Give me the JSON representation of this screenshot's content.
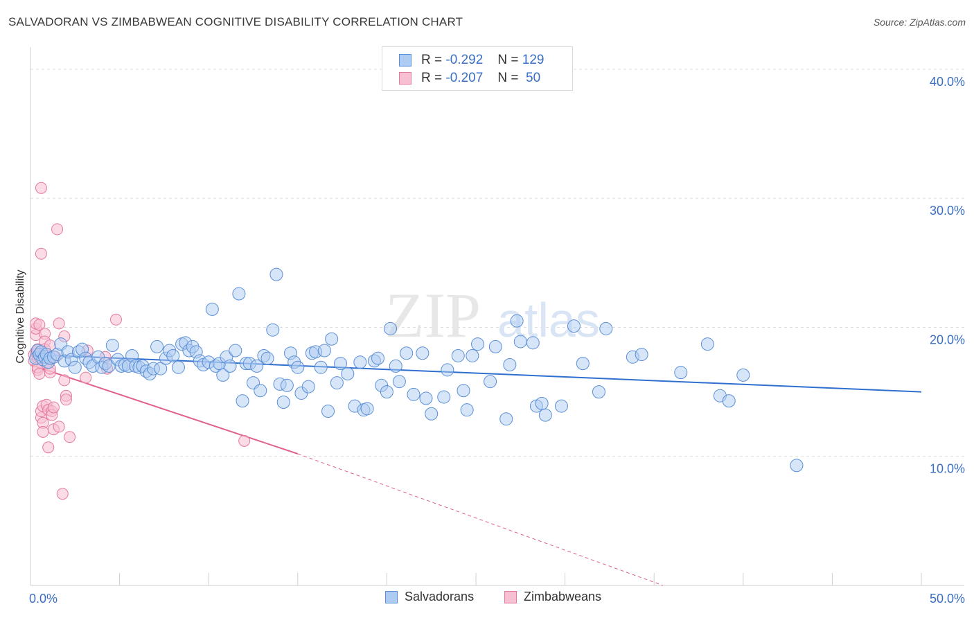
{
  "title": "SALVADORAN VS ZIMBABWEAN COGNITIVE DISABILITY CORRELATION CHART",
  "source": "Source: ZipAtlas.com",
  "watermark": {
    "zip": "ZIP",
    "atlas": "atlas"
  },
  "legend": {
    "series": [
      {
        "r_label": "R =",
        "r_value": "-0.292",
        "n_label": "N =",
        "n_value": "129"
      },
      {
        "r_label": "R =",
        "r_value": "-0.207",
        "n_label": "N =",
        "n_value": " 50"
      }
    ]
  },
  "colors": {
    "salvadoran_fill": "#aecbf1",
    "salvadoran_stroke": "#5a8fd6",
    "salvadoran_line": "#2f6fcf",
    "zimbabwean_fill": "#f7bfd2",
    "zimbabwean_stroke": "#e57aa0",
    "zimbabwean_line": "#e0608f",
    "axis_text": "#3a6fc4",
    "grid": "#dddddd"
  },
  "chart_data": {
    "type": "scatter",
    "title": "SALVADORAN VS ZIMBABWEAN COGNITIVE DISABILITY CORRELATION CHART",
    "xlabel": "",
    "ylabel": "Cognitive Disability",
    "xlim": [
      0,
      50
    ],
    "ylim": [
      0,
      41.5
    ],
    "x_tick_labels": [
      "0.0%",
      "50.0%"
    ],
    "y_ticks": [
      10,
      20,
      30,
      40
    ],
    "y_tick_labels": [
      "10.0%",
      "20.0%",
      "30.0%",
      "40.0%"
    ],
    "legend_position": "top-center",
    "series": [
      {
        "name": "Salvadorans",
        "points": [
          [
            0.3,
            17.6
          ],
          [
            0.4,
            18.2
          ],
          [
            0.5,
            17.9
          ],
          [
            0.6,
            18.1
          ],
          [
            0.7,
            17.5
          ],
          [
            0.8,
            17.7
          ],
          [
            0.9,
            17.9
          ],
          [
            1.0,
            17.3
          ],
          [
            1.1,
            17.6
          ],
          [
            1.3,
            17.7
          ],
          [
            1.5,
            17.9
          ],
          [
            1.7,
            18.7
          ],
          [
            1.9,
            17.4
          ],
          [
            2.1,
            18.1
          ],
          [
            2.3,
            17.5
          ],
          [
            2.5,
            16.9
          ],
          [
            2.7,
            18.1
          ],
          [
            2.9,
            18.3
          ],
          [
            3.1,
            17.6
          ],
          [
            3.3,
            17.3
          ],
          [
            3.5,
            17.0
          ],
          [
            3.8,
            17.7
          ],
          [
            4.0,
            16.9
          ],
          [
            4.2,
            17.2
          ],
          [
            4.4,
            17.0
          ],
          [
            4.6,
            18.6
          ],
          [
            4.9,
            17.5
          ],
          [
            5.1,
            17.0
          ],
          [
            5.3,
            17.1
          ],
          [
            5.5,
            17.0
          ],
          [
            5.7,
            17.8
          ],
          [
            5.9,
            17.0
          ],
          [
            6.1,
            16.9
          ],
          [
            6.3,
            17.0
          ],
          [
            6.5,
            16.6
          ],
          [
            6.7,
            16.4
          ],
          [
            6.9,
            16.8
          ],
          [
            7.1,
            18.5
          ],
          [
            7.3,
            16.8
          ],
          [
            7.6,
            17.6
          ],
          [
            7.8,
            18.2
          ],
          [
            8.0,
            17.8
          ],
          [
            8.3,
            16.9
          ],
          [
            8.5,
            18.7
          ],
          [
            8.7,
            18.8
          ],
          [
            8.9,
            18.2
          ],
          [
            9.1,
            18.5
          ],
          [
            9.3,
            18.1
          ],
          [
            9.5,
            17.4
          ],
          [
            9.7,
            17.1
          ],
          [
            10.0,
            17.3
          ],
          [
            10.2,
            21.4
          ],
          [
            10.4,
            17.0
          ],
          [
            10.6,
            17.2
          ],
          [
            10.8,
            16.3
          ],
          [
            11.0,
            17.7
          ],
          [
            11.2,
            17.0
          ],
          [
            11.5,
            18.2
          ],
          [
            11.7,
            22.6
          ],
          [
            11.9,
            14.3
          ],
          [
            12.1,
            17.2
          ],
          [
            12.3,
            17.2
          ],
          [
            12.5,
            15.7
          ],
          [
            12.7,
            17.0
          ],
          [
            12.9,
            15.1
          ],
          [
            13.1,
            17.8
          ],
          [
            13.3,
            17.6
          ],
          [
            13.6,
            19.8
          ],
          [
            13.8,
            24.1
          ],
          [
            14.0,
            15.6
          ],
          [
            14.2,
            14.2
          ],
          [
            14.4,
            15.5
          ],
          [
            14.6,
            18.0
          ],
          [
            14.8,
            17.3
          ],
          [
            15.0,
            16.9
          ],
          [
            15.2,
            14.9
          ],
          [
            15.6,
            15.4
          ],
          [
            15.8,
            18.0
          ],
          [
            16.0,
            18.1
          ],
          [
            16.3,
            16.9
          ],
          [
            16.5,
            18.2
          ],
          [
            16.7,
            13.5
          ],
          [
            16.9,
            19.1
          ],
          [
            17.2,
            15.7
          ],
          [
            17.4,
            17.2
          ],
          [
            17.8,
            16.4
          ],
          [
            18.2,
            13.9
          ],
          [
            18.5,
            17.3
          ],
          [
            18.7,
            13.6
          ],
          [
            18.9,
            13.7
          ],
          [
            19.3,
            17.4
          ],
          [
            19.5,
            17.6
          ],
          [
            19.7,
            15.5
          ],
          [
            20.0,
            15.0
          ],
          [
            20.2,
            19.9
          ],
          [
            20.5,
            17.0
          ],
          [
            20.7,
            15.8
          ],
          [
            21.1,
            18.0
          ],
          [
            21.5,
            14.8
          ],
          [
            22.0,
            18.0
          ],
          [
            22.2,
            14.5
          ],
          [
            22.5,
            13.3
          ],
          [
            23.2,
            14.6
          ],
          [
            23.4,
            16.7
          ],
          [
            24.0,
            17.8
          ],
          [
            24.3,
            15.1
          ],
          [
            24.5,
            13.6
          ],
          [
            24.8,
            17.8
          ],
          [
            25.1,
            18.7
          ],
          [
            25.8,
            15.8
          ],
          [
            26.1,
            18.5
          ],
          [
            26.7,
            12.9
          ],
          [
            26.9,
            17.1
          ],
          [
            27.3,
            20.5
          ],
          [
            27.5,
            18.9
          ],
          [
            28.2,
            18.8
          ],
          [
            28.4,
            13.9
          ],
          [
            28.7,
            14.1
          ],
          [
            28.9,
            13.2
          ],
          [
            29.8,
            13.9
          ],
          [
            30.5,
            20.1
          ],
          [
            31.0,
            17.2
          ],
          [
            31.9,
            15.0
          ],
          [
            32.3,
            19.9
          ],
          [
            33.8,
            17.7
          ],
          [
            34.3,
            17.9
          ],
          [
            36.5,
            16.5
          ],
          [
            38.0,
            18.7
          ],
          [
            38.7,
            14.7
          ],
          [
            39.2,
            14.3
          ],
          [
            40.0,
            16.3
          ],
          [
            43.0,
            9.3
          ]
        ],
        "trend": {
          "x0": 0,
          "y0": 17.9,
          "x1": 50,
          "y1": 15.0
        }
      },
      {
        "name": "Zimbabweans",
        "points": [
          [
            0.2,
            17.9
          ],
          [
            0.2,
            17.4
          ],
          [
            0.3,
            18.1
          ],
          [
            0.3,
            19.4
          ],
          [
            0.3,
            19.9
          ],
          [
            0.3,
            20.3
          ],
          [
            0.4,
            17.6
          ],
          [
            0.4,
            16.7
          ],
          [
            0.4,
            16.9
          ],
          [
            0.4,
            18.3
          ],
          [
            0.5,
            20.2
          ],
          [
            0.5,
            16.4
          ],
          [
            0.5,
            17.7
          ],
          [
            0.6,
            30.8
          ],
          [
            0.6,
            25.7
          ],
          [
            0.6,
            13.0
          ],
          [
            0.6,
            13.5
          ],
          [
            0.7,
            13.9
          ],
          [
            0.7,
            12.6
          ],
          [
            0.7,
            11.9
          ],
          [
            0.8,
            19.5
          ],
          [
            0.8,
            18.9
          ],
          [
            0.8,
            18.3
          ],
          [
            0.9,
            17.2
          ],
          [
            0.9,
            14.0
          ],
          [
            1.0,
            13.6
          ],
          [
            1.0,
            10.7
          ],
          [
            1.1,
            16.5
          ],
          [
            1.1,
            16.8
          ],
          [
            1.1,
            18.6
          ],
          [
            1.2,
            13.5
          ],
          [
            1.2,
            13.2
          ],
          [
            1.3,
            12.1
          ],
          [
            1.3,
            13.8
          ],
          [
            1.4,
            17.7
          ],
          [
            1.5,
            27.6
          ],
          [
            1.6,
            20.3
          ],
          [
            1.6,
            12.3
          ],
          [
            1.8,
            7.1
          ],
          [
            1.9,
            19.3
          ],
          [
            1.9,
            15.9
          ],
          [
            2.0,
            14.7
          ],
          [
            2.0,
            14.4
          ],
          [
            2.2,
            11.5
          ],
          [
            3.1,
            16.1
          ],
          [
            3.2,
            18.2
          ],
          [
            4.2,
            17.7
          ],
          [
            4.3,
            16.8
          ],
          [
            4.8,
            20.6
          ],
          [
            12.0,
            11.2
          ]
        ],
        "trend": {
          "x0": 0,
          "y0": 17.1,
          "x1": 15,
          "y1": 10.2
        },
        "trend_extension": {
          "x0": 15,
          "y0": 10.2,
          "x1": 35.5,
          "y1": 0
        }
      }
    ]
  },
  "bottom_legend": [
    {
      "label": "Salvadorans"
    },
    {
      "label": "Zimbabweans"
    }
  ]
}
